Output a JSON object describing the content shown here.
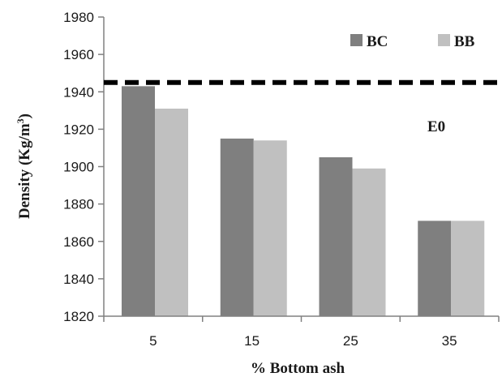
{
  "chart_data": {
    "type": "bar",
    "title": "",
    "xlabel": "% Bottom ash",
    "ylabel_main": "Density (Kg/m",
    "ylabel_sup": "3",
    "ylabel_close": ")",
    "categories": [
      "5",
      "15",
      "25",
      "35"
    ],
    "series": [
      {
        "name": "BC",
        "values": [
          1943,
          1915,
          1905,
          1871
        ],
        "color": "#7f7f7f"
      },
      {
        "name": "BB",
        "values": [
          1931,
          1914,
          1899,
          1871
        ],
        "color": "#c0c0c0"
      }
    ],
    "ylim": [
      1820,
      1980
    ],
    "yticks": [
      "1820",
      "1840",
      "1860",
      "1880",
      "1900",
      "1920",
      "1940",
      "1960",
      "1980"
    ],
    "reference_line": {
      "label": "E0",
      "value": 1945,
      "style": "dashed",
      "color": "#000000"
    },
    "legend_position": "top-right",
    "grid": false
  }
}
